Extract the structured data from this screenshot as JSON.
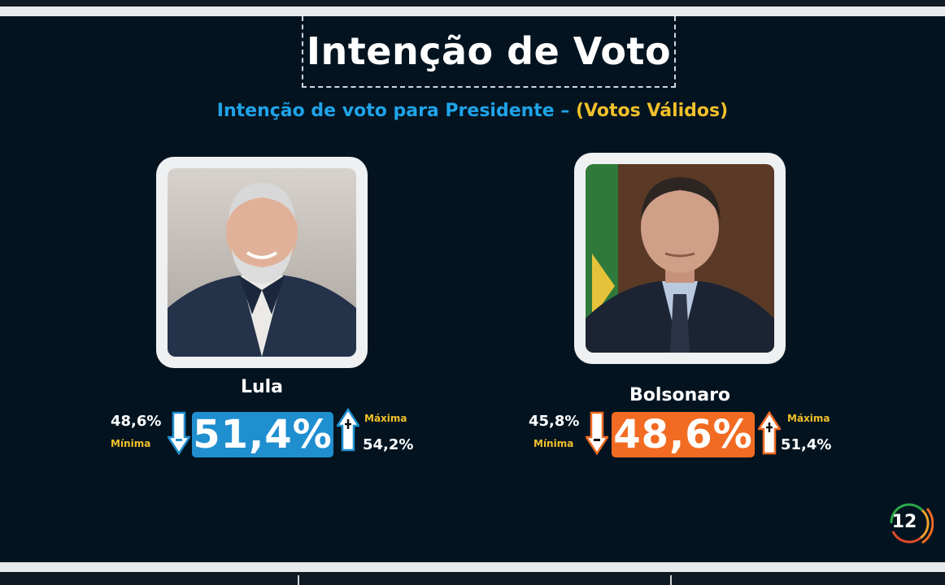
{
  "header": {
    "title": "Intenção de Voto",
    "subtitle_blue": "Intenção de voto para Presidente – ",
    "subtitle_yellow": "(Votos Válidos)"
  },
  "candidates": [
    {
      "name": "Lula",
      "percent": "51,4%",
      "min_value": "48,6%",
      "min_label": "Mínima",
      "max_value": "54,2%",
      "max_label": "Máxima",
      "accent": "#1f8fd0"
    },
    {
      "name": "Bolsonaro",
      "percent": "48,6%",
      "min_value": "45,8%",
      "min_label": "Mínima",
      "max_value": "51,4%",
      "max_label": "Máxima",
      "accent": "#f26b22"
    }
  ],
  "channel_logo": {
    "text": "12",
    "icon": "channel-12-logo-icon"
  },
  "colors": {
    "background": "#031420",
    "subtitle_blue": "#1fa3e8",
    "highlight_yellow": "#f1c02a"
  }
}
